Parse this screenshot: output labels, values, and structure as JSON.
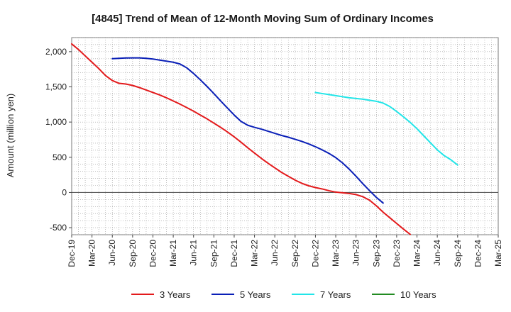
{
  "chart_data": {
    "type": "line",
    "title": "[4845]  Trend of Mean of 12-Month Moving Sum of Ordinary Incomes",
    "xlabel": "",
    "ylabel": "Amount (million yen)",
    "ylim": [
      -600,
      2200
    ],
    "yticks": [
      2000,
      1500,
      1000,
      500,
      0,
      -500
    ],
    "ytick_labels": [
      "2,000",
      "1,500",
      "1,000",
      "500",
      "0",
      "-500"
    ],
    "x_categories": [
      "Dec-19",
      "Mar-20",
      "Jun-20",
      "Sep-20",
      "Dec-20",
      "Mar-21",
      "Jun-21",
      "Sep-21",
      "Dec-21",
      "Mar-22",
      "Jun-22",
      "Sep-22",
      "Dec-22",
      "Mar-23",
      "Jun-23",
      "Sep-23",
      "Dec-23",
      "Mar-24",
      "Jun-24",
      "Sep-24",
      "Dec-24",
      "Mar-25"
    ],
    "grid": true,
    "legend_position": "bottom",
    "series": [
      {
        "name": "3 Years",
        "color": "#e31a1c",
        "start_index": 0,
        "values": [
          2110,
          2030,
          1940,
          1850,
          1760,
          1660,
          1590,
          1550,
          1540,
          1520,
          1490,
          1455,
          1420,
          1385,
          1345,
          1300,
          1255,
          1205,
          1155,
          1100,
          1045,
          985,
          925,
          860,
          790,
          715,
          635,
          560,
          485,
          415,
          350,
          285,
          230,
          175,
          130,
          95,
          70,
          50,
          25,
          5,
          -5,
          -15,
          -30,
          -60,
          -110,
          -190,
          -280,
          -360,
          -440,
          -520,
          -595
        ]
      },
      {
        "name": "5 Years",
        "color": "#0a1fb7",
        "start_index": 6,
        "values": [
          1900,
          1905,
          1910,
          1912,
          1912,
          1905,
          1895,
          1880,
          1865,
          1850,
          1825,
          1770,
          1690,
          1600,
          1505,
          1405,
          1300,
          1200,
          1100,
          1010,
          955,
          925,
          900,
          870,
          840,
          810,
          785,
          755,
          725,
          690,
          650,
          605,
          555,
          495,
          420,
          330,
          230,
          125,
          25,
          -70,
          -150
        ]
      },
      {
        "name": "7 Years",
        "color": "#22e5e8",
        "start_index": 36,
        "values": [
          1420,
          1405,
          1390,
          1375,
          1360,
          1345,
          1335,
          1325,
          1310,
          1295,
          1270,
          1220,
          1150,
          1075,
          995,
          905,
          805,
          705,
          605,
          525,
          465,
          390
        ]
      },
      {
        "name": "10 Years",
        "color": "#228b22",
        "start_index": 0,
        "values": []
      }
    ]
  }
}
